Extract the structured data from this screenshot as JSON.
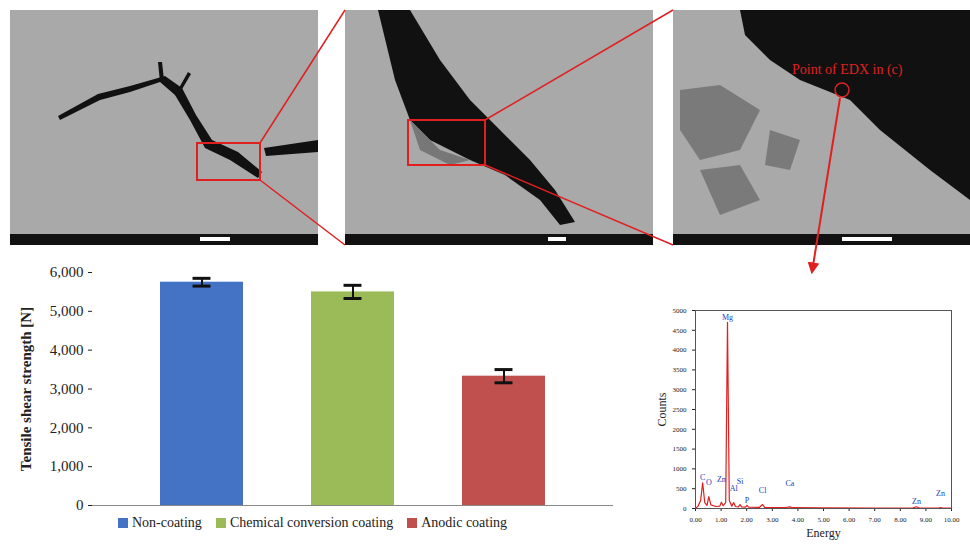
{
  "chart_data": [
    {
      "type": "bar",
      "y_label": "Tensile shear strength [N]",
      "categories": [
        "Non-coating",
        "Chemical conversion coating",
        "Anodic coating"
      ],
      "values": [
        5750,
        5500,
        3330
      ],
      "errors": [
        100,
        170,
        170
      ],
      "colors": [
        "#4472c4",
        "#9bbb59",
        "#c0504d"
      ],
      "ylim": [
        0,
        6000
      ],
      "yticks": [
        0,
        {
          "value": 1000,
          "label": "1,000"
        },
        {
          "value": 2000,
          "label": "2,000"
        },
        {
          "value": 3000,
          "label": "3,000"
        },
        {
          "value": 4000,
          "label": "4,000"
        },
        {
          "value": 5000,
          "label": "5,000"
        },
        {
          "value": 6000,
          "label": "6,000"
        }
      ],
      "legend": "bottom",
      "tick_labels": "y",
      "grid": false
    },
    {
      "type": "line",
      "y_label": "Counts",
      "x_label": "Energy",
      "color": "#e02020",
      "x": [
        0.0,
        0.1,
        0.2,
        0.28,
        0.36,
        0.45,
        0.52,
        0.6,
        0.8,
        0.95,
        1.01,
        1.08,
        1.18,
        1.25,
        1.32,
        1.42,
        1.49,
        1.56,
        1.68,
        1.74,
        1.8,
        1.95,
        2.01,
        2.07,
        2.5,
        2.62,
        2.7,
        3.5,
        3.69,
        3.8,
        5.0,
        7.0,
        8.5,
        8.63,
        8.75,
        9.5,
        9.57,
        9.65,
        10.0
      ],
      "values": [
        0,
        60,
        200,
        650,
        150,
        80,
        300,
        90,
        50,
        60,
        160,
        70,
        150,
        4700,
        200,
        60,
        150,
        50,
        40,
        100,
        40,
        35,
        80,
        35,
        30,
        100,
        30,
        25,
        40,
        20,
        15,
        12,
        15,
        45,
        12,
        10,
        25,
        10,
        8
      ],
      "peaks": [
        {
          "label": "C",
          "x": 0.28,
          "y": 650
        },
        {
          "label": "O",
          "x": 0.52,
          "y": 300
        },
        {
          "label": "Zn",
          "x": 1.01,
          "y": 160
        },
        {
          "label": "Mg",
          "x": 1.25,
          "y": 4700
        },
        {
          "label": "Al",
          "x": 1.49,
          "y": 150
        },
        {
          "label": "Si",
          "x": 1.74,
          "y": 100
        },
        {
          "label": "P",
          "x": 2.01,
          "y": 80
        },
        {
          "label": "Cl",
          "x": 2.62,
          "y": 100
        },
        {
          "label": "Ca",
          "x": 3.69,
          "y": 40
        },
        {
          "label": "Zn",
          "x": 8.63,
          "y": 45
        },
        {
          "label": "Zn",
          "x": 9.57,
          "y": 25
        }
      ],
      "xlim": [
        0,
        10
      ],
      "xticks": [
        {
          "value": 0,
          "label": "0.00"
        },
        {
          "value": 1,
          "label": "1.00"
        },
        {
          "value": 2,
          "label": "2.00"
        },
        {
          "value": 3,
          "label": "3.00"
        },
        {
          "value": 4,
          "label": "4.00"
        },
        {
          "value": 5,
          "label": "5.00"
        },
        {
          "value": 6,
          "label": "6.00"
        },
        {
          "value": 7,
          "label": "7.00"
        },
        {
          "value": 8,
          "label": "8.00"
        },
        {
          "value": 9,
          "label": "9.00"
        },
        {
          "value": 10,
          "label": "10.00"
        }
      ],
      "ylim": [
        0,
        5000
      ],
      "yticks": [
        0,
        500,
        1000,
        1500,
        2000,
        2500,
        3000,
        3500,
        4000,
        4500,
        5000
      ],
      "grid": false
    }
  ],
  "annotation": "Point of EDX in (c)"
}
